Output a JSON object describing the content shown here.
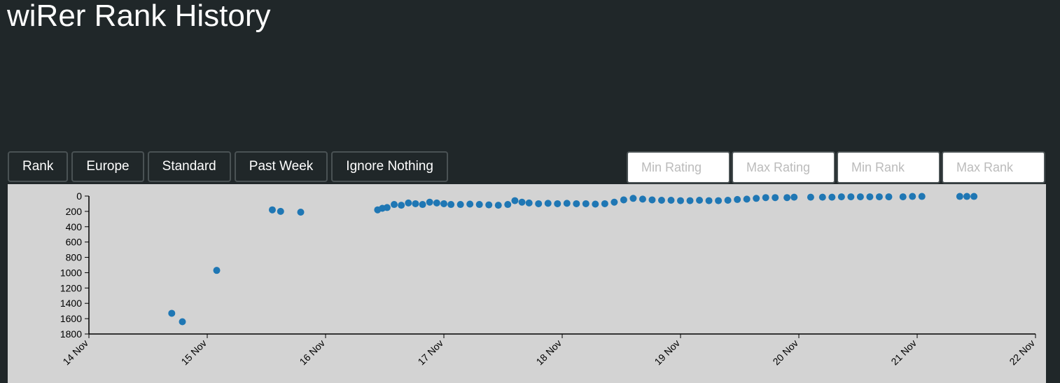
{
  "header": {
    "title": "wiRer Rank History"
  },
  "controls": {
    "buttons": [
      "Rank",
      "Europe",
      "Standard",
      "Past Week",
      "Ignore Nothing"
    ],
    "inputs": [
      "Min Rating",
      "Max Rating",
      "Min Rank",
      "Max Rank"
    ]
  },
  "chart_data": {
    "type": "scatter",
    "color": "#1f77b4",
    "x": [
      14.7,
      14.79,
      15.08,
      15.55,
      15.62,
      15.79,
      16.44,
      16.48,
      16.52,
      16.58,
      16.64,
      16.7,
      16.76,
      16.82,
      16.88,
      16.94,
      17.0,
      17.06,
      17.14,
      17.22,
      17.3,
      17.38,
      17.46,
      17.54,
      17.6,
      17.66,
      17.72,
      17.8,
      17.88,
      17.96,
      18.04,
      18.12,
      18.2,
      18.28,
      18.36,
      18.44,
      18.52,
      18.6,
      18.68,
      18.76,
      18.84,
      18.92,
      19.0,
      19.08,
      19.16,
      19.24,
      19.32,
      19.4,
      19.48,
      19.56,
      19.64,
      19.72,
      19.8,
      19.9,
      19.96,
      20.1,
      20.2,
      20.28,
      20.36,
      20.44,
      20.52,
      20.6,
      20.68,
      20.76,
      20.88,
      20.96,
      21.04,
      21.36,
      21.42,
      21.48
    ],
    "values": [
      1530,
      1640,
      970,
      180,
      200,
      210,
      180,
      160,
      150,
      110,
      120,
      90,
      100,
      110,
      80,
      90,
      100,
      110,
      110,
      105,
      110,
      115,
      120,
      110,
      60,
      80,
      90,
      100,
      95,
      100,
      95,
      100,
      100,
      105,
      100,
      80,
      50,
      30,
      40,
      50,
      55,
      55,
      60,
      60,
      55,
      60,
      60,
      55,
      45,
      40,
      30,
      20,
      20,
      20,
      15,
      15,
      15,
      15,
      10,
      10,
      10,
      10,
      10,
      10,
      10,
      5,
      5,
      5,
      5,
      5
    ],
    "xlim": [
      14,
      22
    ],
    "xticks": [
      {
        "value": 14,
        "label": "14 Nov"
      },
      {
        "value": 15,
        "label": "15 Nov"
      },
      {
        "value": 16,
        "label": "16 Nov"
      },
      {
        "value": 17,
        "label": "17 Nov"
      },
      {
        "value": 18,
        "label": "18 Nov"
      },
      {
        "value": 19,
        "label": "19 Nov"
      },
      {
        "value": 20,
        "label": "20 Nov"
      },
      {
        "value": 21,
        "label": "21 Nov"
      },
      {
        "value": 22,
        "label": "22 Nov"
      }
    ],
    "ylim": [
      1800,
      0
    ],
    "yticks": [
      0,
      200,
      400,
      600,
      800,
      1000,
      1200,
      1400,
      1600,
      1800
    ]
  }
}
